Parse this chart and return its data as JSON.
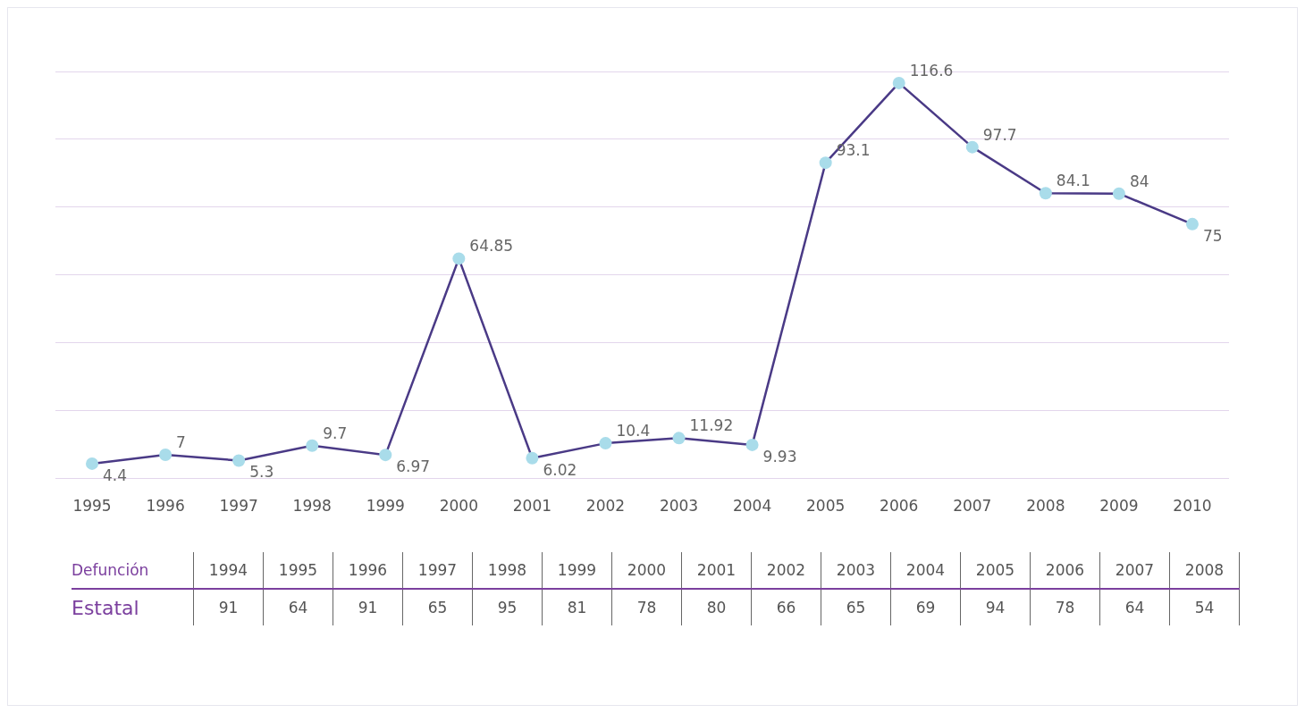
{
  "chart_data": {
    "type": "line",
    "categories": [
      "1995",
      "1996",
      "1997",
      "1998",
      "1999",
      "2000",
      "2001",
      "2002",
      "2003",
      "2004",
      "2005",
      "2006",
      "2007",
      "2008",
      "2009",
      "2010"
    ],
    "series": [
      {
        "color": "#4a3a86",
        "values": [
          4.4,
          7,
          5.3,
          9.7,
          6.97,
          64.85,
          6.02,
          10.4,
          11.92,
          9.93,
          93.1,
          116.6,
          97.7,
          84.1,
          84,
          75
        ]
      }
    ],
    "data_labels": true,
    "grid": "y",
    "tick_labels": "x",
    "marker": "circle",
    "line_style": "solid",
    "annotations": [
      "Defunción",
      "1994",
      "1995",
      "1996",
      "1997",
      "1998",
      "1999",
      "2000",
      "2001",
      "2002",
      "2003",
      "2004",
      "2005",
      "2006",
      "2007",
      "2008",
      "Estatal",
      "91",
      "64",
      "91",
      "65",
      "95",
      "81",
      "78",
      "80",
      "66",
      "65",
      "69",
      "94",
      "78",
      "64",
      "54"
    ]
  }
}
